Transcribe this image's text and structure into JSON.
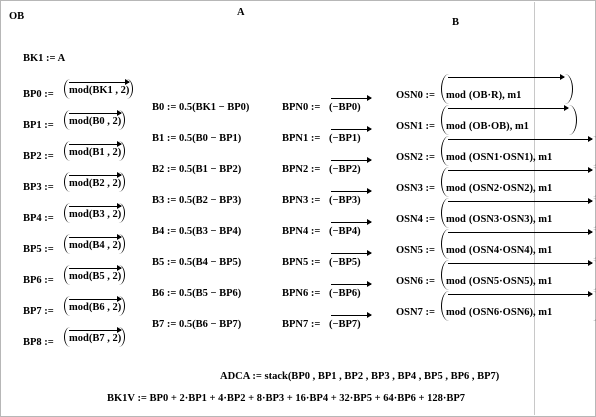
{
  "headers": {
    "ob": "OB",
    "a": "A",
    "b": "B"
  },
  "bk1": "BK1 := A",
  "bp_defs": [
    {
      "lhs": "BP0 :=",
      "expr": "mod(BK1 , 2)"
    },
    {
      "lhs": "BP1 :=",
      "expr": "mod(B0 , 2)"
    },
    {
      "lhs": "BP2 :=",
      "expr": "mod(B1 , 2)"
    },
    {
      "lhs": "BP3 :=",
      "expr": "mod(B2 , 2)"
    },
    {
      "lhs": "BP4 :=",
      "expr": "mod(B3 , 2)"
    },
    {
      "lhs": "BP5 :=",
      "expr": "mod(B4 , 2)"
    },
    {
      "lhs": "BP6 :=",
      "expr": "mod(B5 , 2)"
    },
    {
      "lhs": "BP7 :=",
      "expr": "mod(B6 , 2)"
    },
    {
      "lhs": "BP8 :=",
      "expr": "mod(B7 , 2)"
    }
  ],
  "b_defs": [
    "B0 := 0.5(BK1 − BP0)",
    "B1 := 0.5(B0 − BP1)",
    "B2 := 0.5(B1 − BP2)",
    "B3 := 0.5(B2 − BP3)",
    "B4 := 0.5(B3 − BP4)",
    "B5 := 0.5(B4 − BP5)",
    "B6 := 0.5(B5 − BP6)",
    "B7 := 0.5(B6 − BP7)"
  ],
  "bpn_defs": [
    {
      "lhs": "BPN0 :=",
      "expr": "(−BP0)"
    },
    {
      "lhs": "BPN1 :=",
      "expr": "(−BP1)"
    },
    {
      "lhs": "BPN2 :=",
      "expr": "(−BP2)"
    },
    {
      "lhs": "BPN3 :=",
      "expr": "(−BP3)"
    },
    {
      "lhs": "BPN4 :=",
      "expr": "(−BP4)"
    },
    {
      "lhs": "BPN5 :=",
      "expr": "(−BP5)"
    },
    {
      "lhs": "BPN6 :=",
      "expr": "(−BP6)"
    },
    {
      "lhs": "BPN7 :=",
      "expr": "(−BP7)"
    }
  ],
  "osn_defs": [
    {
      "lhs": "OSN0 :=",
      "mod": "mod",
      "inner": "(OB·R)",
      "tail": ", m1"
    },
    {
      "lhs": "OSN1 :=",
      "mod": "mod",
      "inner": "(OB·OB)",
      "tail": ", m1"
    },
    {
      "lhs": "OSN2 :=",
      "mod": "mod",
      "inner": "(OSN1·OSN1)",
      "tail": ", m1"
    },
    {
      "lhs": "OSN3 :=",
      "mod": "mod",
      "inner": "(OSN2·OSN2)",
      "tail": ", m1"
    },
    {
      "lhs": "OSN4 :=",
      "mod": "mod",
      "inner": "(OSN3·OSN3)",
      "tail": ", m1"
    },
    {
      "lhs": "OSN5 :=",
      "mod": "mod",
      "inner": "(OSN4·OSN4)",
      "tail": ", m1"
    },
    {
      "lhs": "OSN6 :=",
      "mod": "mod",
      "inner": "(OSN5·OSN5)",
      "tail": ", m1"
    },
    {
      "lhs": "OSN7 :=",
      "mod": "mod",
      "inner": "(OSN6·OSN6)",
      "tail": ", m1"
    }
  ],
  "adca": "ADCA := stack(BP0 , BP1 , BP2 , BP3 , BP4 , BP5 , BP6 , BP7)",
  "bk1v": "BK1V := BP0 + 2·BP1 + 4·BP2 + 8·BP3 + 16·BP4 + 32·BP5 + 64·BP6 + 128·BP7"
}
